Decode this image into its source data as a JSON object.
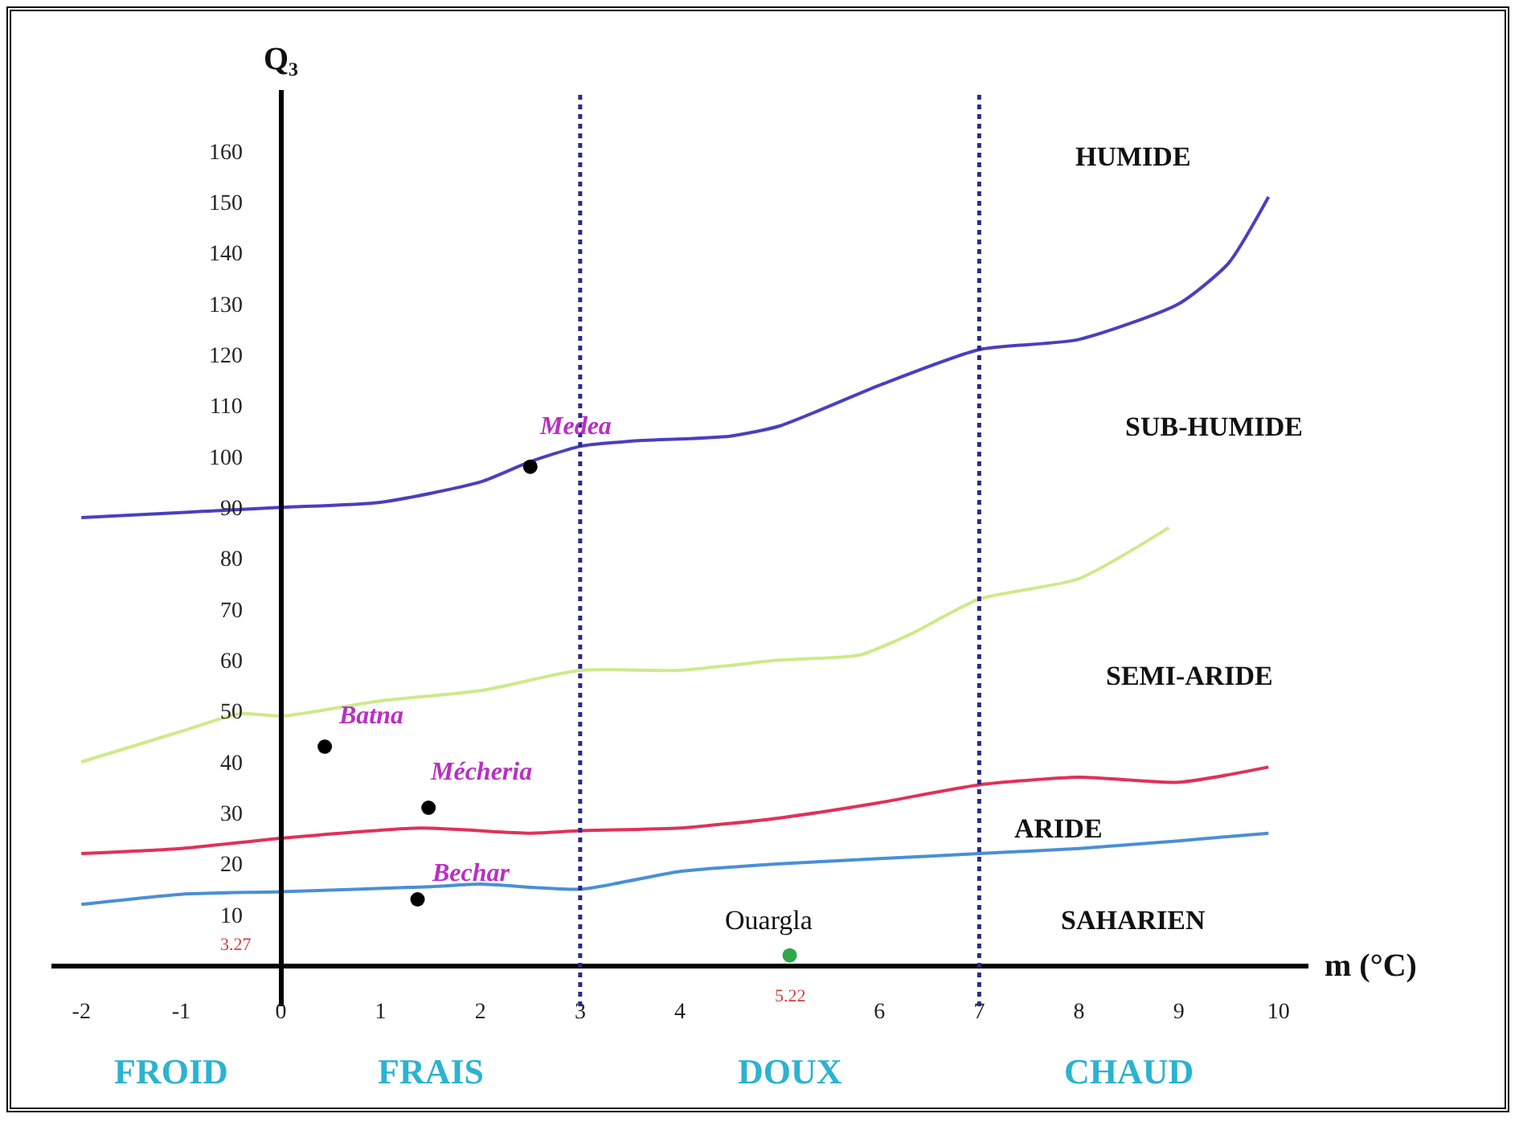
{
  "chart_data": {
    "type": "line",
    "xlabel": "m (°C)",
    "ylabel": "Q₃",
    "xlim": [
      -2.3,
      10.3
    ],
    "xticks": [
      -2,
      -1,
      0,
      1,
      2,
      3,
      4,
      6,
      7,
      8,
      9,
      10
    ],
    "ylim": [
      -8,
      172
    ],
    "yticks": [
      10,
      20,
      30,
      40,
      50,
      60,
      70,
      80,
      90,
      100,
      110,
      120,
      130,
      140,
      150,
      160
    ],
    "grid": false,
    "legend": false,
    "line_style": "solid",
    "series": [
      {
        "color": "#4a3fbf",
        "x": [
          -2,
          -1,
          0,
          1,
          2,
          2.5,
          3,
          3.5,
          4.5,
          5,
          6,
          7,
          8,
          9,
          9.5,
          9.9
        ],
        "values": [
          88,
          89,
          90,
          91,
          95,
          99,
          102,
          103,
          104,
          106,
          114,
          121,
          123,
          130,
          138,
          151
        ]
      },
      {
        "color": "#cfe98a",
        "x": [
          -2,
          -1,
          -0.4,
          0,
          1,
          2,
          3,
          4,
          5,
          5.8,
          6.3,
          7,
          8,
          8.9
        ],
        "values": [
          40,
          46,
          49.5,
          49,
          52,
          54,
          58,
          58,
          60,
          61,
          65,
          72,
          76,
          86
        ]
      },
      {
        "color": "#e0315a",
        "x": [
          -2,
          -1,
          0,
          1.4,
          2.5,
          3,
          4,
          5,
          6,
          7,
          8,
          9,
          9.9
        ],
        "values": [
          22,
          23,
          25,
          27,
          26,
          26.5,
          27,
          29,
          32,
          35.5,
          37,
          36,
          39
        ]
      },
      {
        "color": "#4a8fd6",
        "x": [
          -2,
          -1,
          0,
          1.5,
          2,
          3,
          4,
          5,
          6,
          7,
          8,
          9,
          9.9
        ],
        "values": [
          12,
          14,
          14.5,
          15.5,
          16,
          15,
          18.5,
          20,
          21,
          22,
          23,
          24.5,
          26
        ]
      },
      {
        "type": "scatter",
        "marker": "circle",
        "x": [
          2.5,
          0.44,
          1.48,
          1.37,
          5.1
        ],
        "values": [
          98,
          43,
          31,
          13,
          2
        ],
        "colors": [
          "#000000",
          "#000000",
          "#000000",
          "#000000",
          "#2ea84a"
        ]
      }
    ],
    "ref_lines": [
      {
        "axis": "x",
        "value": 3,
        "color": "#2a2a8a",
        "line_style": "dotted"
      },
      {
        "axis": "x",
        "value": 7,
        "color": "#2a2a8a",
        "line_style": "dotted"
      }
    ],
    "annotations": [
      "HUMIDE",
      "SUB-HUMIDE",
      "SEMI-ARIDE",
      "ARIDE",
      "SAHARIEN",
      "Medea",
      "Batna",
      "Mécheria",
      "Bechar",
      "Ouargla",
      "3.27",
      "5.22",
      "FROID",
      "FRAIS",
      "DOUX",
      "CHAUD"
    ]
  }
}
